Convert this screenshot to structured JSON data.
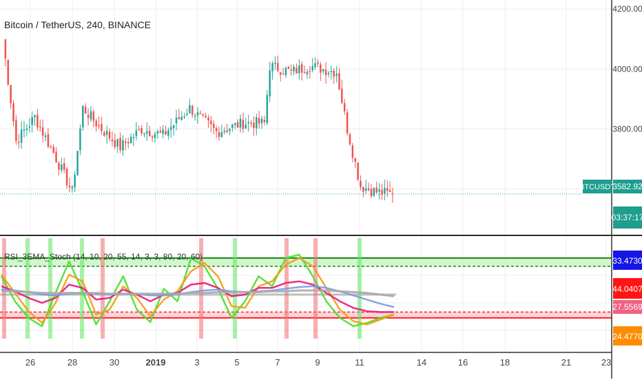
{
  "main_chart": {
    "title": "Bitcoin / TetherUS, 240, BINANCE",
    "symbol_badge": "BTCUSDT",
    "last_price": "3582.92",
    "countdown": "03:37:17",
    "colors": {
      "up": "#26a69a",
      "down": "#ef5350",
      "price_line": "#26a69a",
      "badge": "#1e9e8f"
    }
  },
  "indicator": {
    "label": "RSI_3EMA_Stoch (14, 10, 20, 55, 14, 3, 3, 80, 20, 60)",
    "price_labels": [
      {
        "text": "33.4730",
        "color": "#1515e6"
      },
      {
        "text": "44.0407",
        "color": "#ff1515"
      },
      {
        "text": "27.5569",
        "color": "#f06080"
      },
      {
        "text": "24.4770",
        "color": "#ff8c00"
      }
    ],
    "upper_level": 80,
    "lower_level": 20,
    "mid_level": 60,
    "colors": {
      "stoch_k": "#4cde2a",
      "stoch_d": "#f39c12",
      "rsi": "#e9177e",
      "ema_fast": "#7a9ae6",
      "ema_slow": "#aaaaaa",
      "overbought_zone": "#c9f2c4",
      "oversold_zone": "#f9c9cf"
    }
  },
  "chart_data": [
    {
      "type": "candlestick",
      "title": "Bitcoin / TetherUS, 240, BINANCE",
      "ylim": [
        3450,
        4230
      ],
      "y_ticks": [
        "4200.00",
        "4000.00",
        "3800.00"
      ],
      "x_ticks": [
        "26",
        "28",
        "30",
        "2019",
        "3",
        "5",
        "7",
        "9",
        "11",
        "14",
        "16",
        "18",
        "21",
        "23"
      ],
      "x_range": [
        "Dec 24 2018",
        "Jan 23 2019"
      ],
      "keypoints": [
        {
          "t": 0,
          "close": 4100
        },
        {
          "t": 5,
          "close": 3760
        },
        {
          "t": 12,
          "close": 3840
        },
        {
          "t": 19,
          "close": 3720
        },
        {
          "t": 26,
          "close": 3590
        },
        {
          "t": 30,
          "close": 3870
        },
        {
          "t": 37,
          "close": 3800
        },
        {
          "t": 44,
          "close": 3740
        },
        {
          "t": 52,
          "close": 3800
        },
        {
          "t": 60,
          "close": 3780
        },
        {
          "t": 70,
          "close": 3870
        },
        {
          "t": 80,
          "close": 3790
        },
        {
          "t": 90,
          "close": 3820
        },
        {
          "t": 98,
          "close": 3820
        },
        {
          "t": 100,
          "close": 4010
        },
        {
          "t": 108,
          "close": 3990
        },
        {
          "t": 115,
          "close": 4010
        },
        {
          "t": 125,
          "close": 3990
        },
        {
          "t": 129,
          "close": 3800
        },
        {
          "t": 134,
          "close": 3610
        },
        {
          "t": 140,
          "close": 3590
        },
        {
          "t": 146,
          "close": 3583
        }
      ],
      "last_close": 3582.92
    },
    {
      "type": "line",
      "title": "RSI_3EMA_Stoch (14, 10, 20, 55, 14, 3, 3, 80, 20, 60)",
      "ylim": [
        0,
        100
      ],
      "levels": [
        80,
        60,
        20
      ],
      "series": [
        {
          "values": [
            70,
            40,
            20,
            10,
            50,
            88,
            52,
            12,
            40,
            70,
            30,
            15,
            55,
            40,
            92,
            82,
            55,
            20,
            40,
            70,
            58,
            92,
            96,
            70,
            40,
            20,
            10,
            14,
            20,
            24
          ]
        },
        {
          "values": [
            72,
            50,
            28,
            14,
            38,
            72,
            64,
            24,
            30,
            58,
            44,
            22,
            42,
            52,
            76,
            86,
            70,
            34,
            32,
            58,
            64,
            84,
            92,
            82,
            56,
            30,
            16,
            12,
            18,
            24
          ]
        },
        {
          "values": [
            58,
            52,
            44,
            38,
            44,
            60,
            56,
            42,
            44,
            54,
            48,
            40,
            48,
            50,
            60,
            62,
            56,
            46,
            48,
            56,
            56,
            62,
            64,
            60,
            50,
            40,
            32,
            28,
            27,
            27
          ]
        },
        {
          "values": [
            54,
            53,
            51,
            48,
            47,
            49,
            50,
            49,
            48,
            49,
            49,
            47,
            47,
            48,
            51,
            53,
            54,
            52,
            51,
            52,
            53,
            55,
            57,
            58,
            56,
            52,
            47,
            42,
            37,
            33
          ]
        },
        {
          "values": [
            52,
            52,
            51,
            50,
            50,
            50,
            50,
            50,
            49,
            49,
            49,
            49,
            49,
            49,
            50,
            50,
            51,
            51,
            51,
            51,
            52,
            52,
            53,
            53,
            53,
            52,
            51,
            50,
            48,
            46
          ]
        }
      ]
    }
  ]
}
